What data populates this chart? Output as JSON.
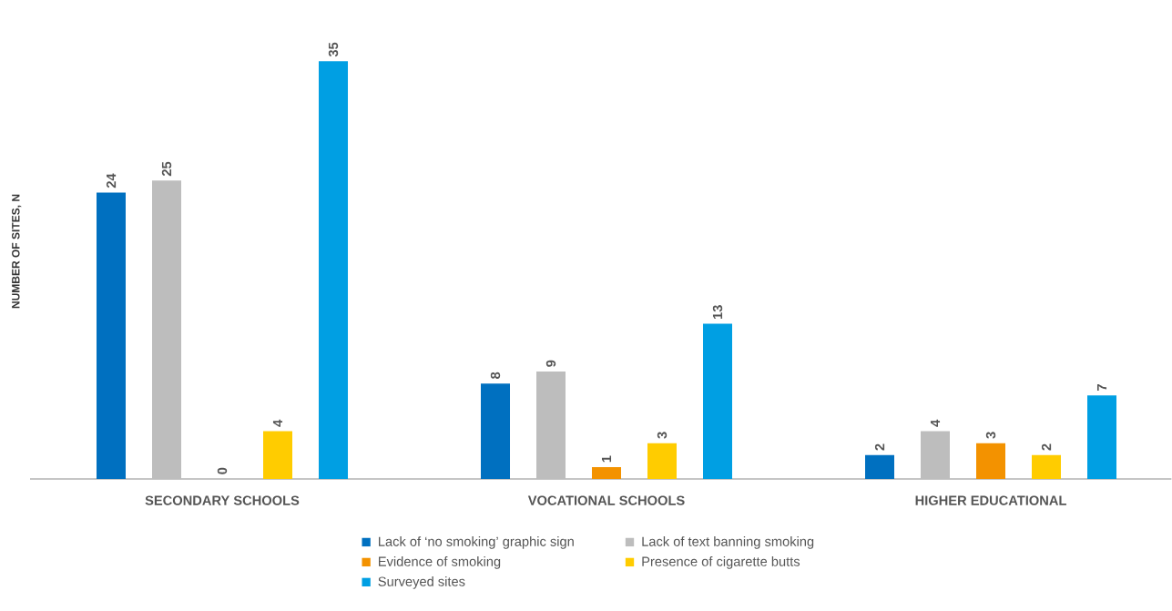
{
  "chart_data": {
    "type": "bar",
    "ylabel": "NUMBER OF SITES, N",
    "categories": [
      "SECONDARY SCHOOLS",
      "VOCATIONAL SCHOOLS",
      "HIGHER EDUCATIONAL"
    ],
    "series": [
      {
        "name": "Lack of ‘no smoking’ graphic sign",
        "color": "#0070c0",
        "values": [
          24,
          8,
          2
        ]
      },
      {
        "name": "Lack of text banning smoking",
        "color": "#bdbdbd",
        "values": [
          25,
          9,
          4
        ]
      },
      {
        "name": "Evidence of smoking",
        "color": "#f39200",
        "values": [
          0,
          1,
          3
        ]
      },
      {
        "name": "Presence of cigarette butts",
        "color": "#ffcc00",
        "values": [
          4,
          3,
          2
        ]
      },
      {
        "name": "Surveyed sites",
        "color": "#009fe3",
        "values": [
          35,
          13,
          7
        ]
      }
    ],
    "data_labels": true,
    "legend": "bottom",
    "grid": false
  }
}
